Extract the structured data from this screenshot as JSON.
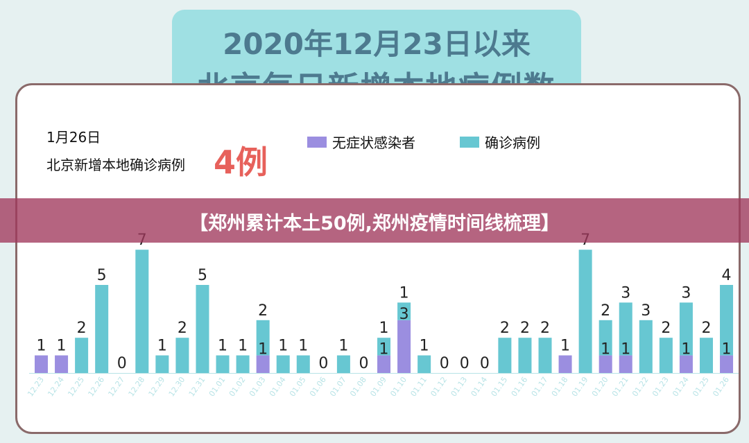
{
  "header": {
    "line1": "2020年12月23日以来",
    "line2": "北京每日新增本地病例数"
  },
  "info": {
    "date": "1月26日",
    "subtitle": "北京新增本地确诊病例",
    "highlight": "4例"
  },
  "legend": [
    {
      "label": "无症状感染者",
      "color": "#9b8ee0"
    },
    {
      "label": "确诊病例",
      "color": "#67c7d2"
    }
  ],
  "banner": {
    "text": "【郑州累计本土50例,郑州疫情时间线梳理】"
  },
  "chart_data": {
    "type": "bar",
    "stacked": true,
    "categories": [
      "12.23",
      "12.24",
      "12.25",
      "12.26",
      "12.27",
      "12.28",
      "12.29",
      "12.30",
      "12.31",
      "01.01",
      "01.02",
      "01.03",
      "01.04",
      "01.05",
      "01.06",
      "01.07",
      "01.08",
      "01.09",
      "01.10",
      "01.11",
      "01.12",
      "01.13",
      "01.14",
      "01.15",
      "01.16",
      "01.17",
      "01.18",
      "01.19",
      "01.20",
      "01.21",
      "01.22",
      "01.23",
      "01.24",
      "01.25",
      "01.26"
    ],
    "series": [
      {
        "name": "无症状感染者",
        "values": [
          1,
          1,
          0,
          0,
          0,
          0,
          0,
          0,
          0,
          0,
          0,
          1,
          0,
          0,
          0,
          0,
          0,
          1,
          3,
          0,
          0,
          0,
          0,
          0,
          0,
          0,
          1,
          0,
          1,
          1,
          0,
          0,
          1,
          0,
          1
        ]
      },
      {
        "name": "确诊病例",
        "values": [
          0,
          0,
          2,
          5,
          0,
          7,
          1,
          2,
          5,
          1,
          1,
          2,
          1,
          1,
          0,
          1,
          0,
          1,
          1,
          1,
          0,
          0,
          0,
          2,
          2,
          2,
          0,
          7,
          2,
          3,
          3,
          2,
          3,
          2,
          4
        ]
      }
    ],
    "label_colors": {
      "default": "#222222",
      "highlight": "#e7615b"
    },
    "ylim": [
      0,
      7.5
    ],
    "grid": false,
    "legend_position": "top-right"
  }
}
